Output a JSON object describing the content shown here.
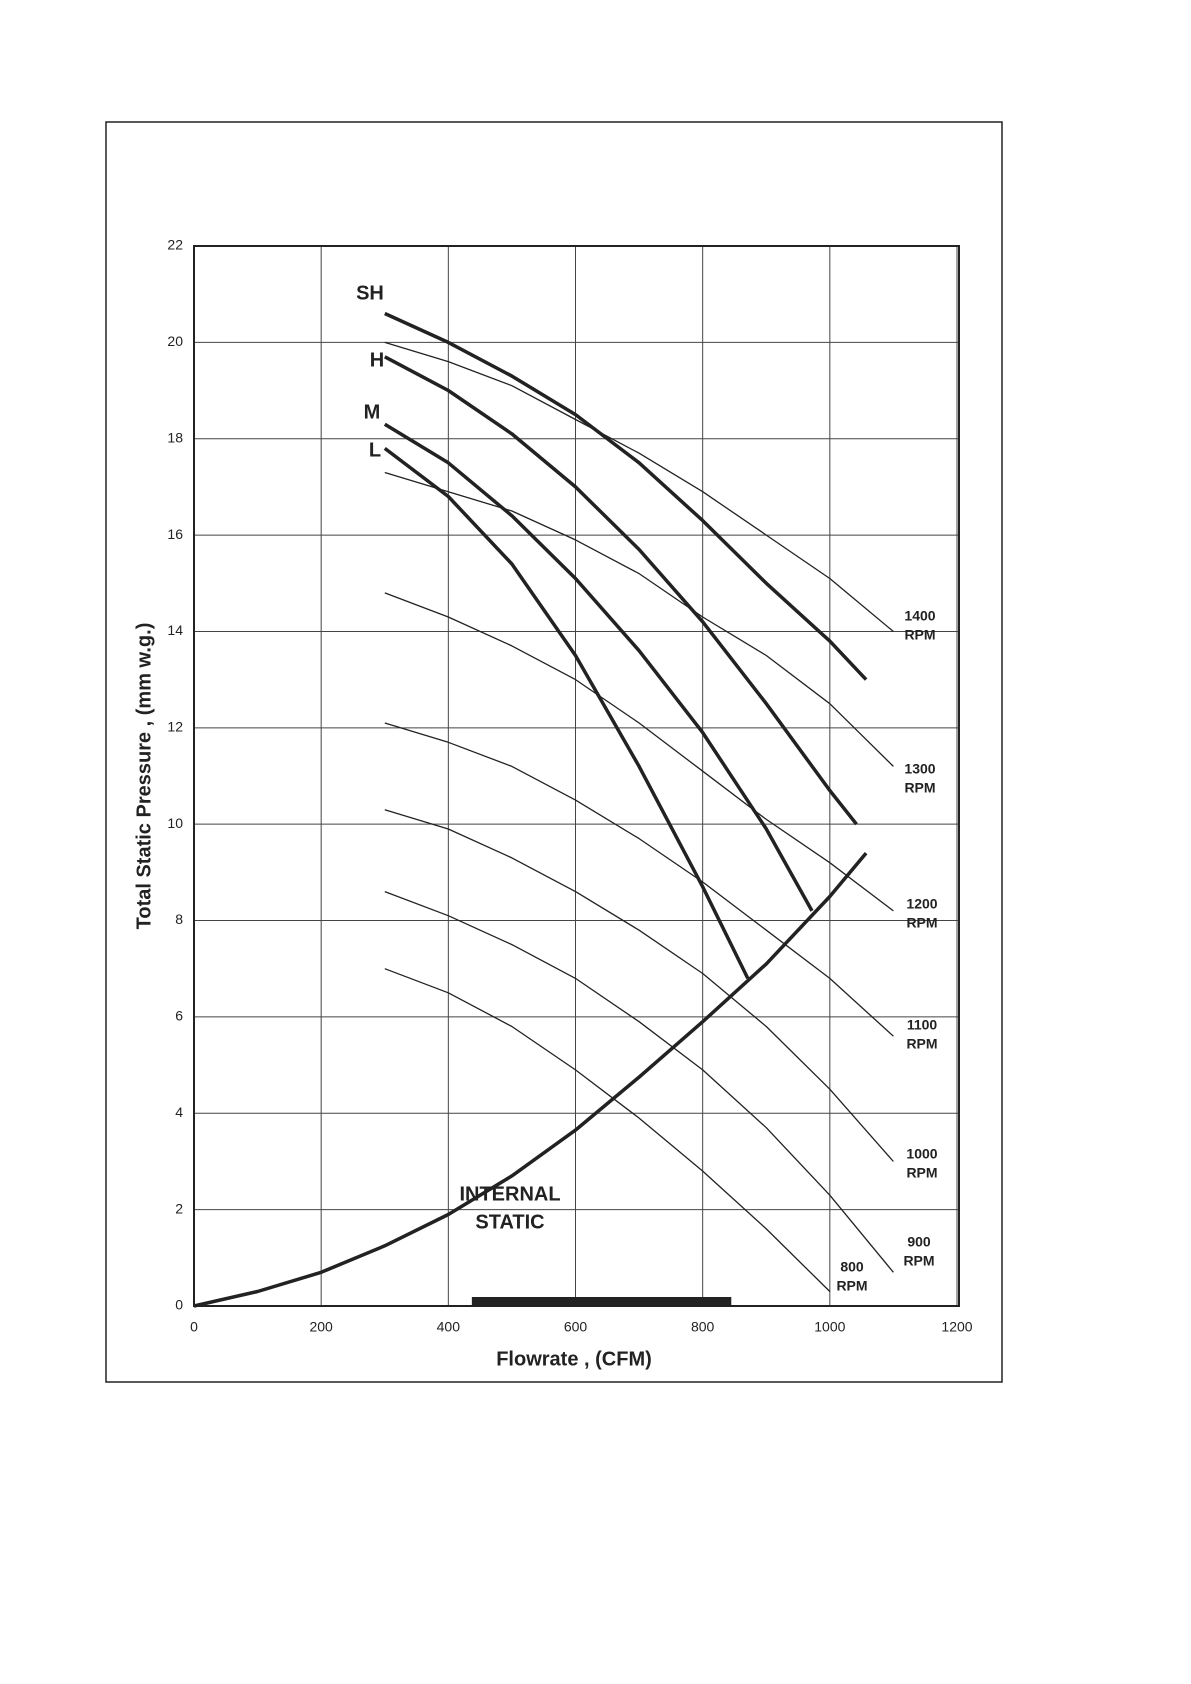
{
  "chart_data": {
    "type": "line",
    "x_label": "Flowrate , (CFM)",
    "y_label": "Total Static Pressure , (mm w.g.)",
    "xlim": [
      0,
      1200
    ],
    "ylim": [
      0,
      22
    ],
    "xticks": [
      0,
      200,
      400,
      600,
      800,
      1000,
      1200
    ],
    "yticks": [
      0,
      2,
      4,
      6,
      8,
      10,
      12,
      14,
      16,
      18,
      20,
      22
    ],
    "grid": true,
    "series": [
      {
        "label_lines": [
          "1400",
          "RPM"
        ],
        "x": [
          300,
          400,
          500,
          600,
          700,
          800,
          900,
          1000,
          1100
        ],
        "values": [
          20.0,
          19.6,
          19.1,
          18.4,
          17.7,
          16.9,
          16.0,
          15.1,
          14.0
        ]
      },
      {
        "label_lines": [
          "1300",
          "RPM"
        ],
        "x": [
          300,
          400,
          500,
          600,
          700,
          800,
          900,
          1000,
          1100
        ],
        "values": [
          17.3,
          16.9,
          16.5,
          15.9,
          15.2,
          14.3,
          13.5,
          12.5,
          11.2
        ]
      },
      {
        "label_lines": [
          "1200",
          "RPM"
        ],
        "x": [
          300,
          400,
          500,
          600,
          700,
          800,
          900,
          1000,
          1100
        ],
        "values": [
          14.8,
          14.3,
          13.7,
          13.0,
          12.1,
          11.1,
          10.1,
          9.2,
          8.2
        ]
      },
      {
        "label_lines": [
          "1100",
          "RPM"
        ],
        "x": [
          300,
          400,
          500,
          600,
          700,
          800,
          900,
          1000,
          1100
        ],
        "values": [
          12.1,
          11.7,
          11.2,
          10.5,
          9.7,
          8.8,
          7.8,
          6.8,
          5.6
        ]
      },
      {
        "label_lines": [
          "1000",
          "RPM"
        ],
        "x": [
          300,
          400,
          500,
          600,
          700,
          800,
          900,
          1000,
          1100
        ],
        "values": [
          10.3,
          9.9,
          9.3,
          8.6,
          7.8,
          6.9,
          5.8,
          4.5,
          3.0
        ]
      },
      {
        "label_lines": [
          "900",
          "RPM"
        ],
        "x": [
          300,
          400,
          500,
          600,
          700,
          800,
          900,
          1000,
          1100
        ],
        "values": [
          8.6,
          8.1,
          7.5,
          6.8,
          5.9,
          4.9,
          3.7,
          2.3,
          0.7
        ]
      },
      {
        "label_lines": [
          "800",
          "RPM"
        ],
        "x": [
          300,
          400,
          500,
          600,
          700,
          800,
          900,
          1000
        ],
        "values": [
          7.0,
          6.5,
          5.8,
          4.9,
          3.9,
          2.8,
          1.6,
          0.3
        ]
      }
    ],
    "mode_series": [
      {
        "name": "SH",
        "x": [
          300,
          400,
          500,
          600,
          700,
          800,
          900,
          1000,
          1057
        ],
        "values": [
          20.6,
          20.0,
          19.3,
          18.5,
          17.5,
          16.3,
          15.0,
          13.8,
          13.0
        ]
      },
      {
        "name": "H",
        "x": [
          300,
          400,
          500,
          600,
          700,
          800,
          900,
          1000,
          1042
        ],
        "values": [
          19.7,
          19.0,
          18.1,
          17.0,
          15.7,
          14.2,
          12.5,
          10.7,
          10.0
        ]
      },
      {
        "name": "M",
        "x": [
          300,
          400,
          500,
          600,
          700,
          800,
          900,
          972
        ],
        "values": [
          18.3,
          17.5,
          16.4,
          15.1,
          13.6,
          11.9,
          9.9,
          8.2
        ]
      },
      {
        "name": "L",
        "x": [
          300,
          400,
          500,
          600,
          700,
          800,
          871
        ],
        "values": [
          17.8,
          16.8,
          15.4,
          13.5,
          11.2,
          8.7,
          6.8
        ]
      }
    ],
    "system_curve": {
      "label_lines": [
        "INTERNAL",
        "STATIC"
      ],
      "x": [
        0,
        100,
        200,
        300,
        400,
        500,
        600,
        700,
        800,
        900,
        1000,
        1057
      ],
      "values": [
        0,
        0.3,
        0.7,
        1.25,
        1.9,
        2.7,
        3.65,
        4.75,
        5.9,
        7.1,
        8.5,
        9.4
      ]
    },
    "range_bar": {
      "x": [
        437,
        845
      ]
    }
  }
}
